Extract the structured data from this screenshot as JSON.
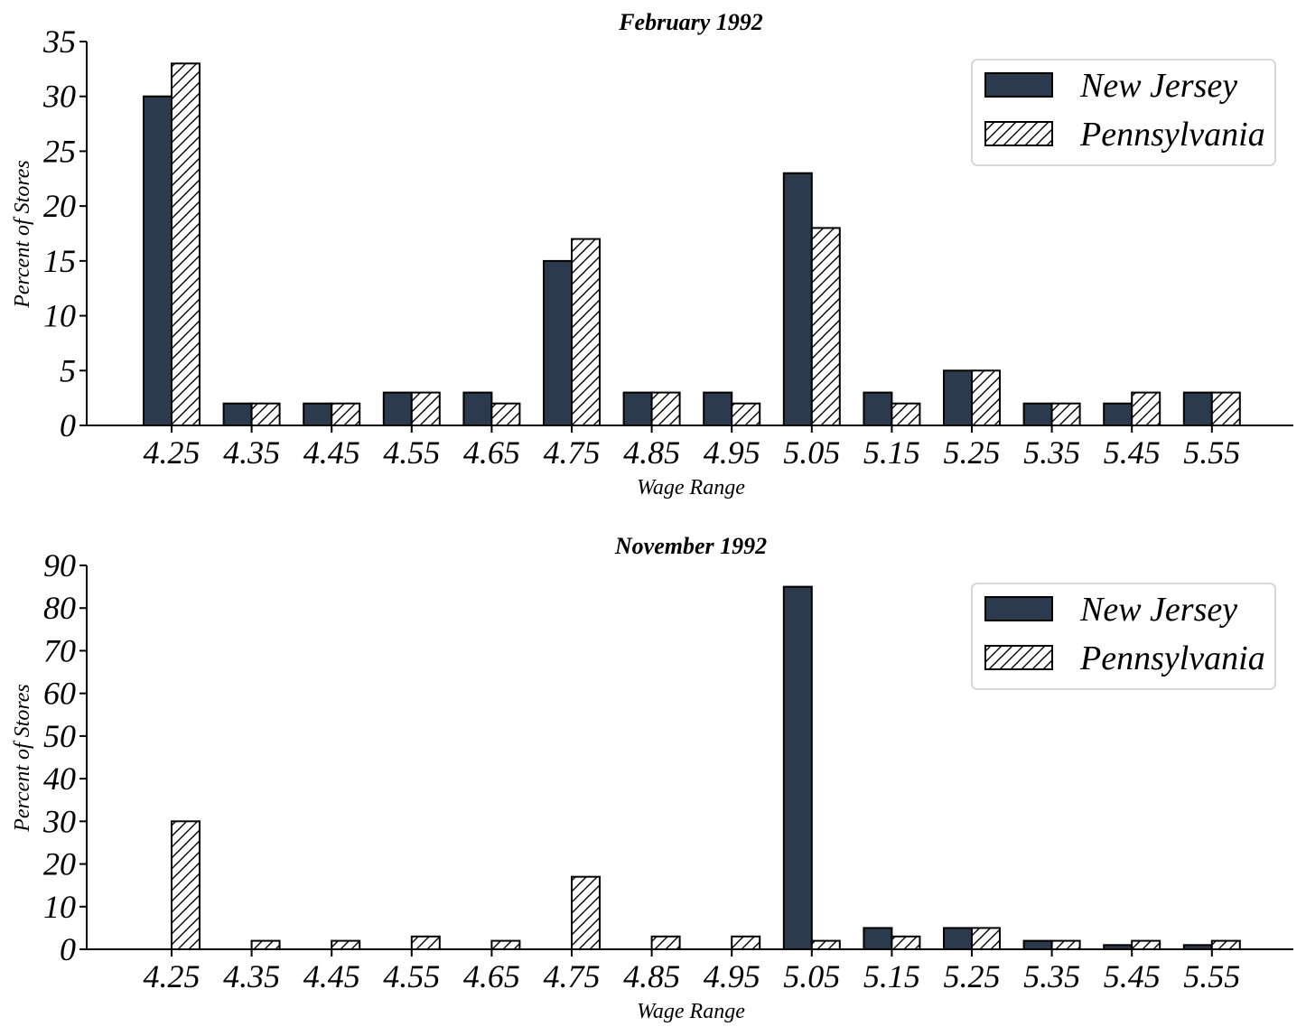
{
  "colors": {
    "nj": "#2b3a4c",
    "pa": "#ffffff",
    "edge": "#000000",
    "hatch": "#000000"
  },
  "chart_data": [
    {
      "type": "bar",
      "title": "February 1992",
      "xlabel": "Wage Range",
      "ylabel": "Percent of Stores",
      "ylim": [
        0,
        35
      ],
      "yticks": [
        "0",
        "5",
        "10",
        "15",
        "20",
        "25",
        "30",
        "35"
      ],
      "yticks_values": [
        0,
        5,
        10,
        15,
        20,
        25,
        30,
        35
      ],
      "categories": [
        "4.25",
        "4.35",
        "4.45",
        "4.55",
        "4.65",
        "4.75",
        "4.85",
        "4.95",
        "5.05",
        "5.15",
        "5.25",
        "5.35",
        "5.45",
        "5.55"
      ],
      "series": [
        {
          "name": "New Jersey",
          "fill": "solid",
          "values": [
            30,
            2,
            2,
            3,
            3,
            15,
            3,
            3,
            23,
            3,
            5,
            2,
            2,
            3
          ]
        },
        {
          "name": "Pennsylvania",
          "fill": "hatch",
          "values": [
            33,
            2,
            2,
            3,
            2,
            17,
            3,
            2,
            18,
            2,
            5,
            2,
            3,
            3
          ]
        }
      ],
      "legend_position": "top-right",
      "grid": false
    },
    {
      "type": "bar",
      "title": "November 1992",
      "xlabel": "Wage Range",
      "ylabel": "Percent of Stores",
      "ylim": [
        0,
        90
      ],
      "yticks": [
        "0",
        "10",
        "20",
        "30",
        "40",
        "50",
        "60",
        "70",
        "80",
        "90"
      ],
      "yticks_values": [
        0,
        10,
        20,
        30,
        40,
        50,
        60,
        70,
        80,
        90
      ],
      "categories": [
        "4.25",
        "4.35",
        "4.45",
        "4.55",
        "4.65",
        "4.75",
        "4.85",
        "4.95",
        "5.05",
        "5.15",
        "5.25",
        "5.35",
        "5.45",
        "5.55"
      ],
      "series": [
        {
          "name": "New Jersey",
          "fill": "solid",
          "values": [
            0,
            0,
            0,
            0,
            0,
            0,
            0,
            0,
            85,
            5,
            5,
            2,
            1,
            1
          ]
        },
        {
          "name": "Pennsylvania",
          "fill": "hatch",
          "values": [
            30,
            2,
            2,
            3,
            2,
            17,
            3,
            3,
            2,
            3,
            5,
            2,
            2,
            2
          ]
        }
      ],
      "legend_position": "top-right",
      "grid": false
    }
  ]
}
